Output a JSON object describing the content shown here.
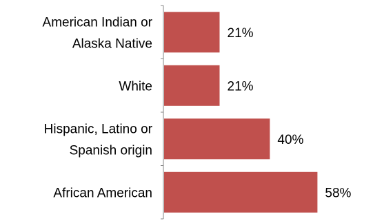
{
  "chart_data": {
    "type": "bar",
    "orientation": "horizontal",
    "categories": [
      [
        "American Indian or",
        "Alaska Native"
      ],
      [
        "White"
      ],
      [
        "Hispanic, Latino or",
        "Spanish origin"
      ],
      [
        "African American"
      ]
    ],
    "values": [
      21,
      21,
      40,
      58
    ],
    "value_labels": [
      "21%",
      "21%",
      "40%",
      "58%"
    ],
    "xlim": [
      0,
      100
    ],
    "grid": false,
    "legend": "none",
    "bar_color": "#C0504D",
    "axis_color": "#868686",
    "title": "",
    "xlabel": "",
    "ylabel": ""
  }
}
